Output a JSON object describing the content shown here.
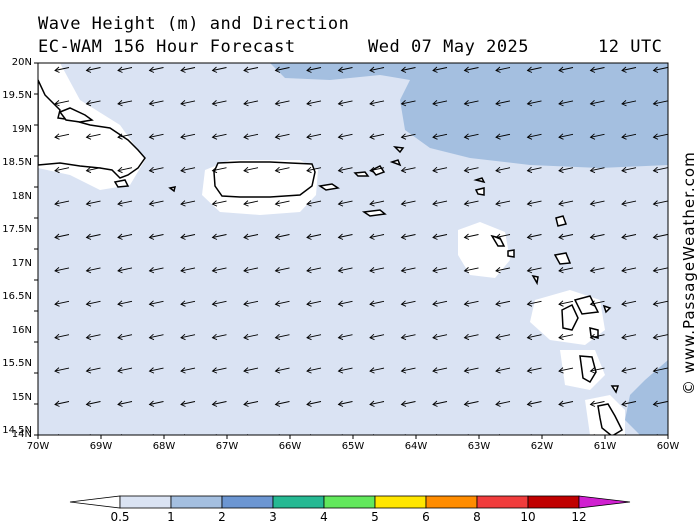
{
  "title": {
    "line1": "Wave Height (m) and Direction",
    "model": "EC-WAM 156 Hour Forecast",
    "date": "Wed 07 May 2025",
    "time": "12 UTC"
  },
  "copyright": "© www.PassageWeather.com",
  "map": {
    "lat_labels": [
      "20N",
      "19.5N",
      "19N",
      "18.5N",
      "18N",
      "17.5N",
      "17N",
      "16.5N",
      "16N",
      "15.5N",
      "15N",
      "14.5N",
      "14N"
    ],
    "lon_labels": [
      "70W",
      "69W",
      "68W",
      "67W",
      "66W",
      "65W",
      "64W",
      "63W",
      "62W",
      "61W",
      "60W"
    ],
    "wave_direction": "west",
    "colors": {
      "lt_0_5": "#ffffff",
      "0_5_to_1": "#dae3f3",
      "1_to_2": "#a4bfe0",
      "land_outline": "#000000"
    }
  },
  "colorbar": {
    "labels": [
      "0.5",
      "1",
      "2",
      "3",
      "4",
      "5",
      "6",
      "8",
      "10",
      "12"
    ],
    "colors": [
      "#ffffff",
      "#dae3f3",
      "#a4bfe0",
      "#6c96d2",
      "#26b993",
      "#62e85c",
      "#ffe600",
      "#ff8c00",
      "#f03c3c",
      "#c00000",
      "#d020d0"
    ]
  }
}
